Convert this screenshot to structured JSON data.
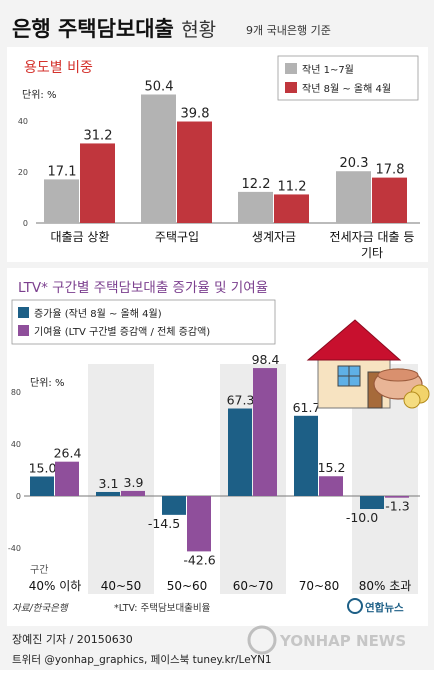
{
  "header": {
    "title": "은행 주택담보대출",
    "title_suffix": "현황",
    "subtitle": "9개 국내은행 기준"
  },
  "colors": {
    "gray": "#b3b3b3",
    "red": "#c0363d",
    "blue": "#1d5f86",
    "purple": "#8f4f9b",
    "section_red": "#d4322c",
    "section_purple": "#7b3f8e",
    "band": "#ececec",
    "page_bg": "#f3f3f3"
  },
  "footer": {
    "source": "자료/한국은행",
    "note": "*LTV: 주택담보대출비율",
    "reporter": "장예진 기자 / 20150630",
    "social": "트위터 @yonhap_graphics, 페이스북 tuney.kr/LeYN1",
    "logo_text": "연합뉴스",
    "watermark": "YONHAP NEWS"
  },
  "chart_data": [
    {
      "type": "bar",
      "title": "용도별 비중",
      "unit_label": "단위: %",
      "categories": [
        "대출금 상환",
        "주택구입",
        "생계자금",
        "전세자금 대출 등 기타"
      ],
      "category_lines": [
        [
          "대출금 상환"
        ],
        [
          "주택구입"
        ],
        [
          "생계자금"
        ],
        [
          "전세자금 대출 등",
          "기타"
        ]
      ],
      "series": [
        {
          "name": "작년 1~7월",
          "values": [
            17.1,
            50.4,
            12.2,
            20.3
          ],
          "value_labels": [
            "17.1",
            "50.4",
            "12.2",
            "20.3"
          ]
        },
        {
          "name": "작년 8월 ~ 올해 4월",
          "values": [
            31.2,
            39.8,
            11.2,
            17.8
          ],
          "value_labels": [
            "31.2",
            "39.8",
            "11.2",
            "17.8"
          ]
        }
      ],
      "yticks": [
        0,
        20,
        40
      ],
      "ylim": [
        0,
        55
      ],
      "grid": false,
      "legend_position": "top-right"
    },
    {
      "type": "bar",
      "title": "LTV* 구간별 주택담보대출 증가율 및 기여율",
      "unit_label": "단위: %",
      "xlabel": "구간",
      "categories": [
        "40% 이하",
        "40~50",
        "50~60",
        "60~70",
        "70~80",
        "80% 초과"
      ],
      "series": [
        {
          "name": "증가율 (작년 8월 ~ 올해 4월)",
          "values": [
            15.0,
            3.1,
            -14.5,
            67.3,
            61.7,
            -10.0
          ],
          "value_labels": [
            "15.0",
            "3.1",
            "-14.5",
            "67.3",
            "61.7",
            "-10.0"
          ]
        },
        {
          "name": "기여율 (LTV 구간별 증감액 / 전체 증감액)",
          "values": [
            26.4,
            3.9,
            -42.6,
            98.4,
            15.2,
            -1.3
          ],
          "value_labels": [
            "26.4",
            "3.9",
            "-42.6",
            "98.4",
            "15.2",
            "-1.3"
          ]
        }
      ],
      "yticks": [
        -40,
        0,
        40,
        80
      ],
      "ylim": [
        -50,
        105
      ],
      "grid": false,
      "legend_position": "top-left"
    }
  ]
}
